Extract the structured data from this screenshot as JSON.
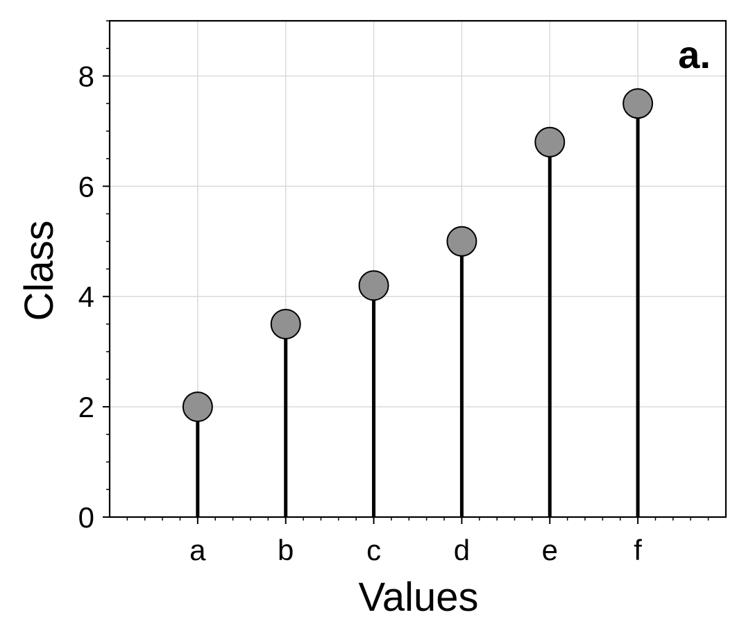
{
  "chart_data": {
    "type": "lollipop",
    "panel_label": "a.",
    "xlabel": "Values",
    "ylabel": "Class",
    "categories": [
      "a",
      "b",
      "c",
      "d",
      "e",
      "f"
    ],
    "values": [
      2.0,
      3.5,
      4.2,
      5.0,
      6.8,
      7.5
    ],
    "ylim": [
      0,
      9
    ],
    "yticks": [
      0,
      2,
      4,
      6,
      8
    ],
    "grid": true,
    "colors": {
      "marker_fill": "#919191",
      "marker_edge": "#000000",
      "stem": "#000000",
      "grid": "#d9d9d9",
      "axes": "#000000"
    }
  }
}
